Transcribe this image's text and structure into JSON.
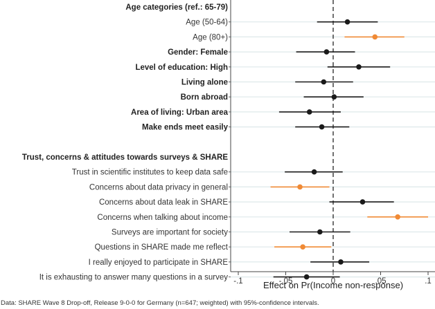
{
  "chart_data": {
    "type": "coefficient-plot",
    "xlabel": "Effect on Pr(Income non-response)",
    "xlim": [
      -0.105,
      0.11
    ],
    "xticks": [
      -0.1,
      -0.05,
      0,
      0.05,
      0.1
    ],
    "xtick_labels": [
      "-.1",
      "-.05",
      "0",
      ".05",
      ".1"
    ],
    "reference_line": 0,
    "grid": true,
    "colors": {
      "default": "#1a1a1a",
      "significant": "#f08a35",
      "grid": "#dde8ea"
    },
    "rows": [
      {
        "label": "Age categories (ref.: 65-79)",
        "header": true
      },
      {
        "label": "Age (50-64)",
        "est": 0.015,
        "lo": -0.017,
        "hi": 0.047,
        "significant": false
      },
      {
        "label": "Age (80+)",
        "est": 0.044,
        "lo": 0.012,
        "hi": 0.075,
        "significant": true
      },
      {
        "label": "Gender: Female",
        "bold": true,
        "est": -0.007,
        "lo": -0.039,
        "hi": 0.023,
        "significant": false
      },
      {
        "label": "Level of education: High",
        "bold": true,
        "est": 0.027,
        "lo": -0.006,
        "hi": 0.06,
        "significant": false
      },
      {
        "label": "Living alone",
        "bold": true,
        "est": -0.01,
        "lo": -0.04,
        "hi": 0.021,
        "significant": false
      },
      {
        "label": "Born abroad",
        "bold": true,
        "est": 0.001,
        "lo": -0.031,
        "hi": 0.032,
        "significant": false
      },
      {
        "label": "Area of living: Urban area",
        "bold": true,
        "est": -0.025,
        "lo": -0.057,
        "hi": 0.008,
        "significant": false
      },
      {
        "label": "Make ends meet easily",
        "bold": true,
        "est": -0.012,
        "lo": -0.04,
        "hi": 0.017,
        "significant": false
      },
      {
        "label": "",
        "spacer": true
      },
      {
        "label": "Trust, concerns & attitudes towards surveys & SHARE",
        "header": true
      },
      {
        "label": "Trust in scientific institutes to keep data safe",
        "est": -0.02,
        "lo": -0.051,
        "hi": 0.01,
        "significant": false
      },
      {
        "label": "Concerns about data privacy in general",
        "est": -0.035,
        "lo": -0.066,
        "hi": -0.004,
        "significant": true
      },
      {
        "label": "Concerns about data leak in SHARE",
        "est": 0.031,
        "lo": -0.004,
        "hi": 0.064,
        "significant": false
      },
      {
        "label": "Concerns when talking about income",
        "est": 0.068,
        "lo": 0.036,
        "hi": 0.1,
        "significant": true
      },
      {
        "label": "Surveys are important for society",
        "est": -0.014,
        "lo": -0.046,
        "hi": 0.018,
        "significant": false
      },
      {
        "label": "Questions in SHARE made me reflect",
        "est": -0.032,
        "lo": -0.062,
        "hi": -0.002,
        "significant": true
      },
      {
        "label": "I really enjoyed to participate in SHARE",
        "est": 0.008,
        "lo": -0.024,
        "hi": 0.038,
        "significant": false
      },
      {
        "label": "It is exhausting to answer many questions in a survey",
        "est": -0.028,
        "lo": -0.063,
        "hi": 0.007,
        "significant": false
      }
    ],
    "note": "Data: SHARE Wave 8 Drop-off, Release 9-0-0 for Germany (n=647; weighted) with 95%-confidence intervals."
  }
}
